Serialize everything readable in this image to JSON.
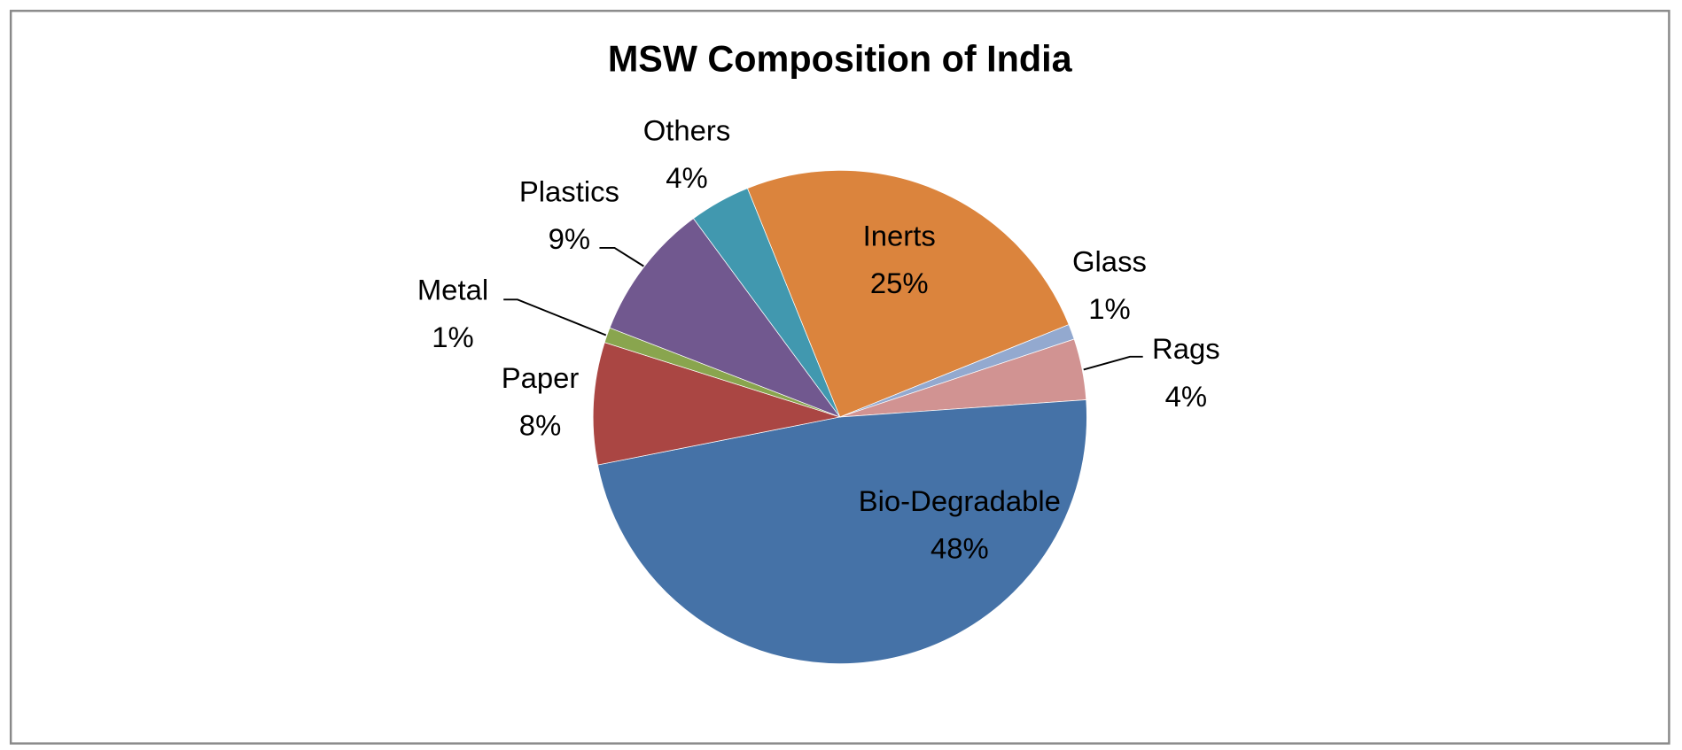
{
  "chart_data": {
    "type": "pie",
    "title": "MSW Composition of India",
    "unit": "%",
    "slices": [
      {
        "label": "Inerts",
        "value": 25,
        "display": "25%",
        "color": "#DB843D"
      },
      {
        "label": "Glass",
        "value": 1,
        "display": "1%",
        "color": "#93A9CF"
      },
      {
        "label": "Rags",
        "value": 4,
        "display": "4%",
        "color": "#D19392"
      },
      {
        "label": "Bio-Degradable",
        "value": 48,
        "display": "48%",
        "color": "#4572A7"
      },
      {
        "label": "Paper",
        "value": 8,
        "display": "8%",
        "color": "#AA4643"
      },
      {
        "label": "Metal",
        "value": 1,
        "display": "1%",
        "color": "#89A54E"
      },
      {
        "label": "Plastics",
        "value": 9,
        "display": "9%",
        "color": "#71588F"
      },
      {
        "label": "Others",
        "value": 4,
        "display": "4%",
        "color": "#4198AF"
      }
    ],
    "legend": "none"
  }
}
